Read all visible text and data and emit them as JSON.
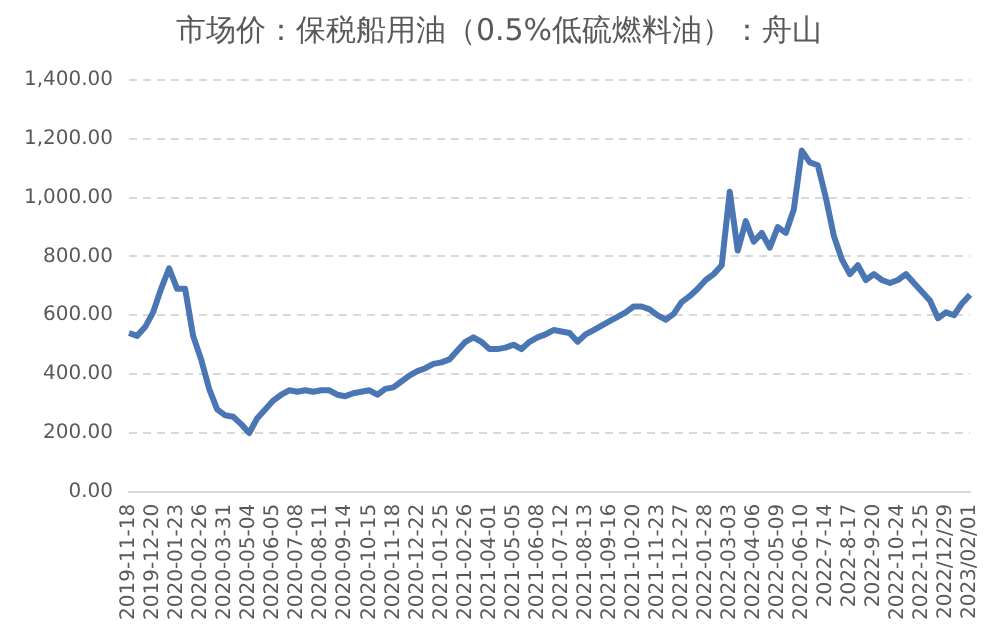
{
  "chart_data": {
    "type": "line",
    "title": "市场价：保税船用油（0.5%低硫燃料油）：舟山",
    "categories": [
      "2019-11-18",
      null,
      null,
      "2019-12-20",
      null,
      null,
      "2020-01-23",
      null,
      null,
      "2020-02-26",
      null,
      null,
      "2020-03-31",
      null,
      null,
      "2020-05-04",
      null,
      null,
      "2020-06-05",
      null,
      null,
      "2020-07-08",
      null,
      null,
      "2020-08-11",
      null,
      null,
      "2020-09-14",
      null,
      null,
      "2020-10-15",
      null,
      null,
      "2020-11-18",
      null,
      null,
      "2020-12-22",
      null,
      null,
      "2021-01-25",
      null,
      null,
      "2021-02-26",
      null,
      null,
      "2021-04-01",
      null,
      null,
      "2021-05-05",
      null,
      null,
      "2021-06-08",
      null,
      null,
      "2021-07-12",
      null,
      null,
      "2021-08-13",
      null,
      null,
      "2021-09-16",
      null,
      null,
      "2021-10-20",
      null,
      null,
      "2021-11-23",
      null,
      null,
      "2021-12-27",
      null,
      null,
      "2022-01-28",
      null,
      null,
      "2022-03-03",
      null,
      null,
      "2022-04-06",
      null,
      null,
      "2022-05-09",
      null,
      null,
      "2022-06-10",
      null,
      null,
      "2022-7-14",
      null,
      null,
      "2022-8-17",
      null,
      null,
      "2022-9-20",
      null,
      null,
      "2022-10-24",
      null,
      null,
      "2022-11-25",
      null,
      null,
      "2022/12/29",
      null,
      null,
      "2023/02/01"
    ],
    "series": [
      {
        "color": "#4a76b4",
        "values": [
          540,
          530,
          560,
          610,
          690,
          760,
          690,
          690,
          530,
          450,
          350,
          280,
          260,
          255,
          230,
          200,
          250,
          280,
          310,
          330,
          345,
          340,
          345,
          340,
          345,
          345,
          330,
          325,
          335,
          340,
          345,
          330,
          350,
          355,
          375,
          395,
          410,
          420,
          435,
          440,
          450,
          480,
          510,
          525,
          510,
          485,
          485,
          490,
          500,
          485,
          510,
          525,
          535,
          550,
          545,
          540,
          510,
          535,
          550,
          565,
          580,
          595,
          610,
          630,
          630,
          620,
          600,
          585,
          605,
          645,
          665,
          690,
          720,
          740,
          770,
          1020,
          820,
          920,
          850,
          880,
          830,
          900,
          880,
          960,
          1160,
          1120,
          1110,
          1000,
          870,
          790,
          740,
          770,
          720,
          740,
          720,
          710,
          720,
          740,
          710,
          680,
          650,
          590,
          610,
          600,
          640,
          670
        ]
      }
    ],
    "ylim": [
      0,
      1400
    ],
    "yticks": [
      {
        "value": 0,
        "label": "0.00"
      },
      {
        "value": 200,
        "label": "200.00"
      },
      {
        "value": 400,
        "label": "400.00"
      },
      {
        "value": 600,
        "label": "600.00"
      },
      {
        "value": 800,
        "label": "800.00"
      },
      {
        "value": 1000,
        "label": "1,000.00"
      },
      {
        "value": 1200,
        "label": "1,200.00"
      },
      {
        "value": 1400,
        "label": "1,400.00"
      }
    ],
    "grid": "y",
    "line_style": "solid",
    "marker": "none",
    "legend": false
  }
}
